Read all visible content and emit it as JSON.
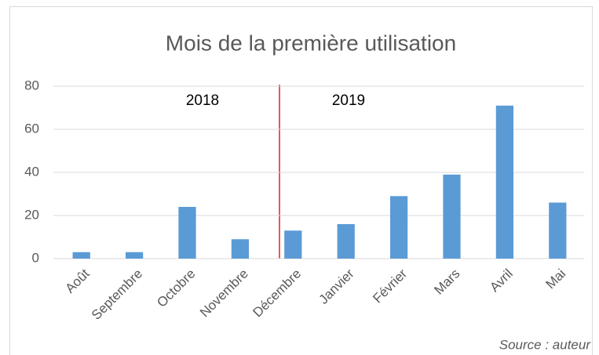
{
  "chart_data": {
    "type": "bar",
    "title": "Mois de la première utilisation",
    "categories": [
      "Août",
      "Septembre",
      "Octobre",
      "Novembre",
      "Décembre",
      "Janvier",
      "Février",
      "Mars",
      "Avril",
      "Mai"
    ],
    "values": [
      3,
      3,
      24,
      9,
      13,
      16,
      29,
      39,
      71,
      26
    ],
    "color": "#5b9bd5",
    "ylim": [
      0,
      80
    ],
    "yticks": [
      0,
      20,
      40,
      60,
      80
    ],
    "grid": true,
    "annotations": [
      "2018",
      "2019"
    ],
    "source": "Source : auteur"
  }
}
